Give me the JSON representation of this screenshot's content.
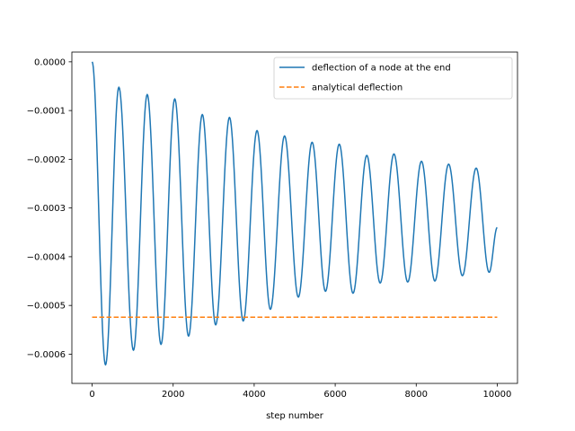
{
  "chart_data": {
    "type": "line",
    "title": "",
    "xlabel": "step number",
    "ylabel": "",
    "xlim": [
      -500,
      10500
    ],
    "ylim": [
      -0.00066,
      2e-05
    ],
    "x_ticks": [
      0,
      2000,
      4000,
      6000,
      8000,
      10000
    ],
    "x_tick_labels": [
      "0",
      "2000",
      "4000",
      "6000",
      "8000",
      "10000"
    ],
    "y_ticks": [
      0.0,
      -0.0001,
      -0.0002,
      -0.0003,
      -0.0004,
      -0.0005,
      -0.0006
    ],
    "y_tick_labels": [
      "0.0000",
      "−0.0001",
      "−0.0002",
      "−0.0003",
      "−0.0004",
      "−0.0005",
      "−0.0006"
    ],
    "grid": false,
    "legend_position": "top-right",
    "series": [
      {
        "name": "deflection of a node at the end",
        "style": "solid",
        "color": "#1f77b4",
        "x": [
          0,
          330,
          660,
          1020,
          1360,
          1700,
          2040,
          2380,
          2720,
          3050,
          3390,
          3730,
          4070,
          4400,
          4750,
          5090,
          5430,
          5760,
          6100,
          6440,
          6780,
          7110,
          7450,
          7790,
          8130,
          8460,
          8800,
          9140,
          9480,
          9800,
          10000
        ],
        "y": [
          0.0,
          -0.000622,
          -5.2e-05,
          -0.000592,
          -6.7e-05,
          -0.00058,
          -7.6e-05,
          -0.000563,
          -0.000108,
          -0.00054,
          -0.000114,
          -0.000532,
          -0.000141,
          -0.000508,
          -0.000152,
          -0.000483,
          -0.000165,
          -0.000471,
          -0.000169,
          -0.000475,
          -0.000192,
          -0.000454,
          -0.000189,
          -0.000452,
          -0.000204,
          -0.00045,
          -0.00021,
          -0.000439,
          -0.000218,
          -0.000432,
          -0.00034
        ]
      },
      {
        "name": "analytical deflection",
        "style": "dashed",
        "color": "#ff7f0e",
        "x": [
          0,
          10000
        ],
        "y": [
          -0.000524,
          -0.000524
        ]
      }
    ]
  }
}
